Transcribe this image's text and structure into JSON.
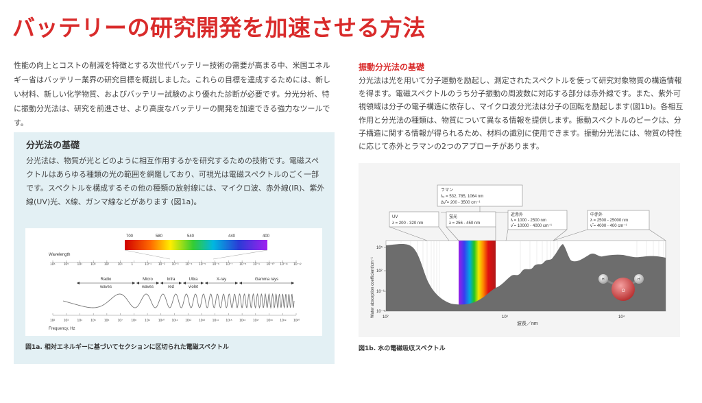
{
  "title": "バッテリーの研究開発を加速させる方法",
  "intro": "性能の向上とコストの削減を特徴とする次世代バッテリー技術の需要が高まる中、米国エネルギー省はバッテリー業界の研究目標を概説しました。これらの目標を達成するためには、新しい材料、新しい化学物質、およびバッテリー試験のより優れた診断が必要です。分光分析、特に振動分光法は、研究を前進させ、より高度なバッテリーの開発を加速できる強力なツールです。",
  "left_box": {
    "heading": "分光法の基礎",
    "text": "分光法は、物質が光とどのように相互作用するかを研究するための技術です。電磁スペクトルはあらゆる種類の光の範囲を網羅しており、可視光は電磁スペクトルのごく一部です。スペクトルを構成するその他の種類の放射線には、マイクロ波、赤外線(IR)、紫外線(UV)光、X線、ガンマ線などがあります (図1a)。",
    "caption": "図1a. 相対エネルギーに基づいてセクションに区切られた電磁スペクトル"
  },
  "right": {
    "heading": "振動分光法の基礎",
    "text": "分光法は光を用いて分子運動を励起し、測定されたスペクトルを使って研究対象物質の構造情報を得ます。電磁スペクトルのうち分子振動の周波数に対応する部分は赤外線です。また、紫外可視領域は分子の電子構造に依存し、マイクロ波分光法は分子の回転を励起します(図1b)。各相互作用と分光法の種類は、物質について異なる情報を提供します。振動スペクトルのピークは、分子構造に関する情報が得られるため、材料の識別に使用できます。振動分光法には、物質の特性に応じて赤外とラマンの2つのアプローチがあります。",
    "caption": "図1b. 水の電磁吸収スペクトル"
  },
  "fig_a": {
    "visible_nm": [
      "700",
      "580",
      "540",
      "440",
      "400"
    ],
    "wavelength_label": "Wavelength",
    "wavelength_ticks": [
      "10⁶",
      "10⁵",
      "10⁴",
      "10³",
      "10²",
      "10¹",
      "1",
      "10⁻¹",
      "10⁻²",
      "10⁻³",
      "10⁻⁴",
      "10⁻⁵",
      "10⁻⁶",
      "10⁻⁷",
      "10⁻⁸",
      "10⁻⁹",
      "10⁻¹⁰",
      "10⁻¹¹",
      "10⁻¹²"
    ],
    "bands": [
      {
        "l1": "Radio",
        "l2": "waves"
      },
      {
        "l1": "Micro",
        "l2": "waves"
      },
      {
        "l1": "Infra",
        "l2": "red"
      },
      {
        "l1": "Ultra",
        "l2": "violet"
      },
      {
        "l1": "X-ray",
        "l2": ""
      },
      {
        "l1": "Gamma rays",
        "l2": ""
      }
    ],
    "frequency_label": "Frequency, Hz",
    "frequency_ticks": [
      "10²",
      "10³",
      "10⁴",
      "10⁵",
      "10⁶",
      "10⁷",
      "10⁸",
      "10⁹",
      "10¹⁰",
      "10¹¹",
      "10¹²",
      "10¹³",
      "10¹⁴",
      "10¹⁵",
      "10¹⁶",
      "10¹⁷",
      "10¹⁸",
      "10¹⁹",
      "10²⁰"
    ]
  },
  "fig_b": {
    "y_label": "Water absorption coefficient/cm⁻¹",
    "y_ticks": [
      "10⁵",
      "10²",
      "10⁻¹",
      "10⁻⁴"
    ],
    "x_label": "波長／nm",
    "x_ticks": [
      "10²",
      "10³",
      "10⁴"
    ],
    "boxes": {
      "raman": {
        "l1": "ラマン",
        "l2": "λ₀ = 532, 785, 1064 nm",
        "l3": "Δν̃ = 200 - 3500 cm⁻¹"
      },
      "uv": {
        "l1": "UV",
        "l2": "λ = 200 - 320 nm"
      },
      "fluor": {
        "l1": "蛍光",
        "l2": "λ = 256 - 450 nm"
      },
      "nir": {
        "l1": "近赤外",
        "l2": "λ = 1000 - 2500 nm",
        "l3": "ν̃ = 10000 - 4000 cm⁻¹"
      },
      "mir": {
        "l1": "中赤外",
        "l2": "λ = 2500 - 25000 nm",
        "l3": "ν̃ = 4000 - 400 cm⁻¹"
      }
    },
    "molecule": {
      "h": "H",
      "o": "O"
    }
  }
}
